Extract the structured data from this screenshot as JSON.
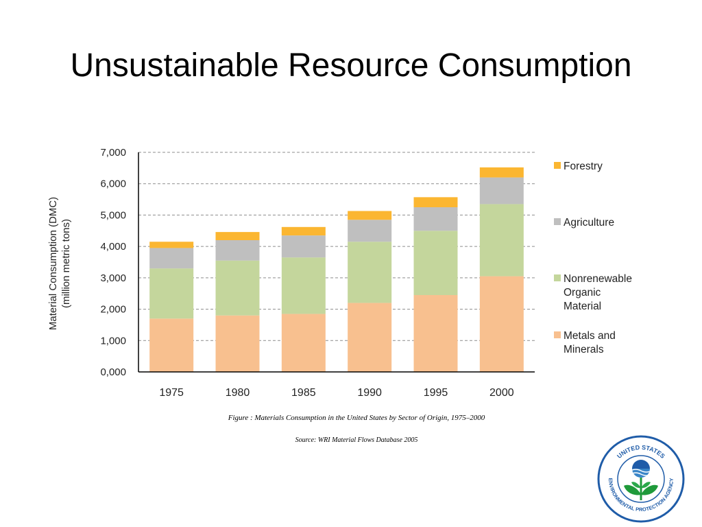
{
  "slide": {
    "title": "Unsustainable Resource Consumption",
    "figure_caption": "Figure : Materials Consumption in the United States by Sector of Origin, 1975–2000",
    "source_caption": "Source: WRI Material Flows Database 2005",
    "logo": {
      "name": "epa-seal",
      "text": "UNITED STATES ENVIRONMENTAL PROTECTION AGENCY"
    }
  },
  "chart_data": {
    "type": "bar",
    "stacked": true,
    "categories": [
      "1975",
      "1980",
      "1985",
      "1990",
      "1995",
      "2000"
    ],
    "ylabel": "Material Consumption (DMC)",
    "ylabel_line2": "(million metric tons)",
    "ylim": [
      0,
      7000
    ],
    "yticks": [
      "0,000",
      "1,000",
      "2,000",
      "3,000",
      "4,000",
      "5,000",
      "6,000",
      "7,000"
    ],
    "grid": true,
    "legend_position": "right",
    "series": [
      {
        "name": "Metals and Minerals",
        "label_lines": [
          "Metals and",
          "Minerals"
        ],
        "color": "#f8c08f",
        "values": [
          1700,
          1800,
          1850,
          2200,
          2450,
          3050
        ]
      },
      {
        "name": "Nonrenewable Organic Material",
        "label_lines": [
          "Nonrenewable",
          "Organic",
          "Material"
        ],
        "color": "#c4d69c",
        "values": [
          1600,
          1750,
          1800,
          1950,
          2050,
          2300
        ]
      },
      {
        "name": "Agriculture",
        "label_lines": [
          "Agriculture"
        ],
        "color": "#bfbfbf",
        "values": [
          650,
          650,
          700,
          700,
          750,
          850
        ]
      },
      {
        "name": "Forestry",
        "label_lines": [
          "Forestry"
        ],
        "color": "#fbb631",
        "values": [
          200,
          260,
          270,
          280,
          320,
          320
        ]
      }
    ]
  }
}
